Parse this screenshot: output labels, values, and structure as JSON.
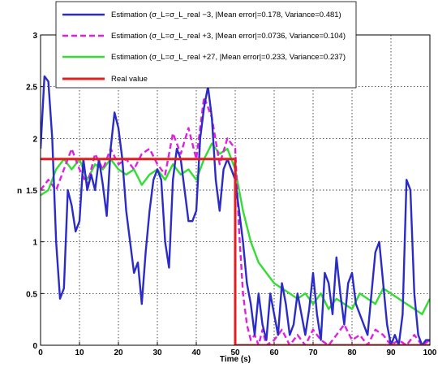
{
  "chart_data": {
    "type": "line",
    "xlabel": "Time (s)",
    "ylabel": "n",
    "xlim": [
      0,
      100
    ],
    "ylim": [
      0,
      3
    ],
    "xticks": [
      "0",
      "10",
      "20",
      "30",
      "40",
      "50",
      "60",
      "70",
      "80",
      "90",
      "100"
    ],
    "yticks": [
      "0",
      "0.5",
      "1",
      "1.5",
      "2",
      "2.5",
      "3"
    ],
    "grid": true,
    "legend_position": "top",
    "series": [
      {
        "name": "Estimation (σL=σLreal−3, |Mean error|=0.178, Variance=0.481)",
        "legend_label": "Estimation (σ_L=σ_L_real −3,  |Mean error|=0.178,  Variance=0.481)",
        "color": "#2b2bc8",
        "style": "solid",
        "x": [
          0,
          1,
          2,
          3,
          4,
          5,
          6,
          7,
          8,
          9,
          10,
          11,
          12,
          13,
          14,
          15,
          16,
          17,
          18,
          19,
          20,
          21,
          22,
          23,
          24,
          25,
          26,
          27,
          28,
          29,
          30,
          31,
          32,
          33,
          34,
          35,
          36,
          37,
          38,
          39,
          40,
          41,
          42,
          43,
          44,
          45,
          46,
          47,
          48,
          49,
          50,
          51,
          52,
          53,
          54,
          55,
          56,
          57,
          58,
          59,
          60,
          61,
          62,
          63,
          64,
          65,
          66,
          67,
          68,
          69,
          70,
          71,
          72,
          73,
          74,
          75,
          76,
          77,
          78,
          79,
          80,
          81,
          82,
          83,
          84,
          85,
          86,
          87,
          88,
          89,
          90,
          91,
          92,
          93,
          94,
          95,
          96,
          97,
          98,
          99,
          100
        ],
        "y": [
          1.9,
          2.6,
          2.55,
          2.0,
          1.0,
          0.45,
          0.55,
          1.5,
          1.35,
          1.1,
          1.2,
          1.8,
          1.5,
          1.65,
          1.5,
          1.8,
          1.55,
          1.25,
          1.9,
          2.25,
          2.1,
          1.8,
          1.3,
          1.0,
          0.7,
          0.8,
          0.4,
          0.9,
          1.3,
          1.6,
          1.7,
          1.6,
          1.0,
          0.75,
          1.6,
          1.9,
          1.8,
          1.5,
          1.2,
          1.2,
          1.3,
          2.0,
          2.3,
          2.5,
          2.2,
          1.6,
          1.3,
          1.7,
          1.8,
          1.7,
          1.6,
          1.3,
          1.0,
          0.6,
          0.4,
          0.1,
          0.5,
          0.2,
          0.05,
          0.5,
          0.3,
          0.1,
          0.6,
          0.4,
          0.1,
          0.2,
          0.5,
          0.3,
          0.1,
          0.35,
          0.7,
          0.3,
          0.05,
          0.7,
          0.6,
          0.3,
          0.85,
          0.5,
          0.2,
          0.6,
          0.7,
          0.4,
          0.3,
          0.2,
          0.1,
          0.5,
          0.9,
          1.0,
          0.6,
          0.2,
          0.0,
          0.1,
          0.0,
          0.3,
          1.6,
          1.5,
          0.5,
          0.1,
          0.0,
          0.05,
          0.05
        ]
      },
      {
        "name": "Estimation (σL=σLreal+3, |Mean error|=0.0736, Variance=0.104)",
        "legend_label": "Estimation (σ_L=σ_L_real +3,  |Mean error|=0.0736,  Variance=0.104)",
        "color": "#e020e0",
        "style": "dashed",
        "x": [
          0,
          2,
          4,
          6,
          8,
          10,
          12,
          14,
          16,
          18,
          20,
          22,
          24,
          26,
          28,
          30,
          32,
          34,
          36,
          38,
          40,
          42,
          44,
          46,
          48,
          50,
          51,
          52,
          53,
          54,
          55,
          56,
          57,
          58,
          60,
          62,
          64,
          66,
          68,
          70,
          72,
          74,
          76,
          78,
          80,
          82,
          84,
          86,
          88,
          90,
          92,
          94,
          96,
          98,
          100
        ],
        "y": [
          1.5,
          1.6,
          1.5,
          1.7,
          1.9,
          1.7,
          1.55,
          1.85,
          1.7,
          1.9,
          1.75,
          1.8,
          1.7,
          1.85,
          1.9,
          1.75,
          1.65,
          2.05,
          1.85,
          2.1,
          1.8,
          2.4,
          2.2,
          1.75,
          2.0,
          1.9,
          1.1,
          0.5,
          0.2,
          0.05,
          0.1,
          0.0,
          0.15,
          0.0,
          0.05,
          0.15,
          0.0,
          0.1,
          0.0,
          0.15,
          0.05,
          0.0,
          0.1,
          0.2,
          0.05,
          0.1,
          0.0,
          0.15,
          0.1,
          0.0,
          0.05,
          0.0,
          0.1,
          0.0,
          0.05
        ]
      },
      {
        "name": "Estimation (σL=σLreal+27, |Mean error|=0.233, Variance=0.237)",
        "legend_label": "Estimation (σ_L=σ_L_real +27,  |Mean error|=0.233,  Variance=0.237)",
        "color": "#33dd33",
        "style": "solid",
        "x": [
          0,
          2,
          4,
          6,
          8,
          10,
          12,
          14,
          16,
          18,
          20,
          22,
          24,
          26,
          28,
          30,
          32,
          34,
          36,
          38,
          40,
          42,
          44,
          46,
          48,
          50,
          52,
          54,
          56,
          58,
          60,
          62,
          64,
          66,
          68,
          70,
          72,
          74,
          76,
          78,
          80,
          82,
          84,
          86,
          88,
          90,
          92,
          94,
          96,
          98,
          100
        ],
        "y": [
          1.45,
          1.5,
          1.7,
          1.8,
          1.7,
          1.8,
          1.6,
          1.75,
          1.7,
          1.8,
          1.7,
          1.65,
          1.7,
          1.55,
          1.65,
          1.7,
          1.6,
          1.75,
          1.65,
          1.7,
          1.6,
          1.8,
          1.95,
          1.85,
          1.9,
          1.7,
          1.3,
          1.0,
          0.8,
          0.7,
          0.6,
          0.55,
          0.5,
          0.45,
          0.5,
          0.4,
          0.5,
          0.35,
          0.45,
          0.4,
          0.35,
          0.5,
          0.45,
          0.4,
          0.55,
          0.5,
          0.45,
          0.4,
          0.35,
          0.3,
          0.45
        ]
      },
      {
        "name": "Real value",
        "legend_label": "Real value",
        "color": "#e02020",
        "style": "solid",
        "x": [
          0,
          50,
          50,
          100
        ],
        "y": [
          1.8,
          1.8,
          0,
          0
        ]
      }
    ]
  }
}
